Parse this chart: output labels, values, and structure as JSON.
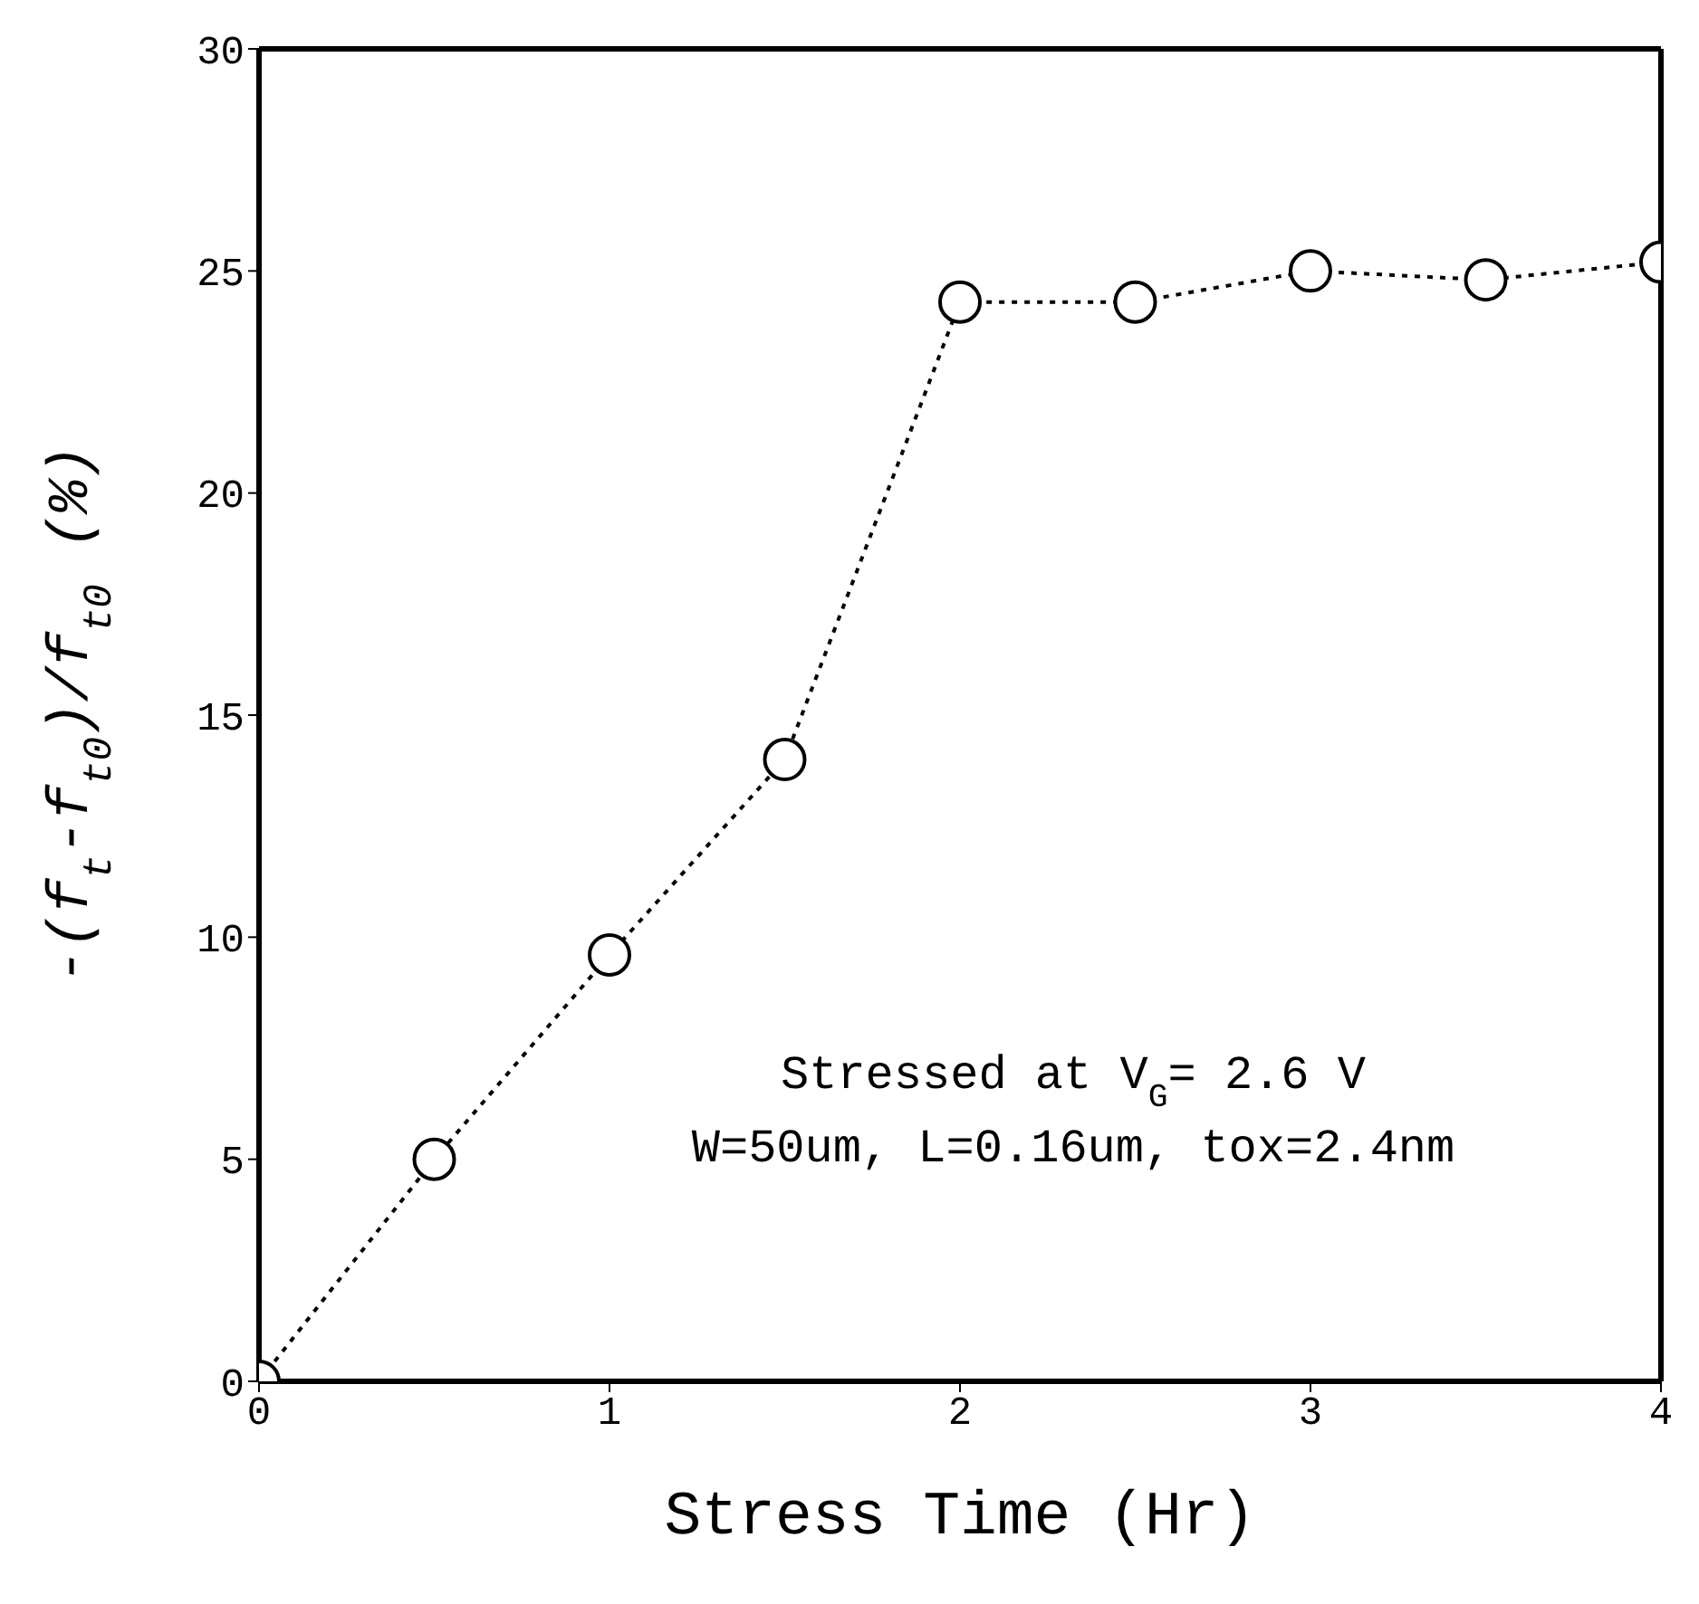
{
  "chart_data": {
    "type": "line",
    "xlabel": "Stress Time (Hr)",
    "ylabel": "-(f$_{t}$-f$_{t0}$)/f$_{t0}$  (%)",
    "x": [
      0,
      0.5,
      1,
      1.5,
      2,
      2.5,
      3,
      3.5,
      4
    ],
    "series": [
      {
        "color": "#000000",
        "values": [
          0,
          5.0,
          9.6,
          14.0,
          24.3,
          24.3,
          25.0,
          24.8,
          25.2
        ]
      }
    ],
    "xlim": [
      0,
      4
    ],
    "xticks": [
      0,
      1,
      2,
      3,
      4
    ],
    "ylim": [
      0,
      30
    ],
    "yticks": [
      0,
      5,
      10,
      15,
      20,
      25,
      30
    ],
    "marker": "circle",
    "line_style": "dotted",
    "annotations": [
      "Stressed at V$_{G}$= 2.6 V",
      "W=50um, L=0.16um, tox=2.4nm"
    ]
  }
}
